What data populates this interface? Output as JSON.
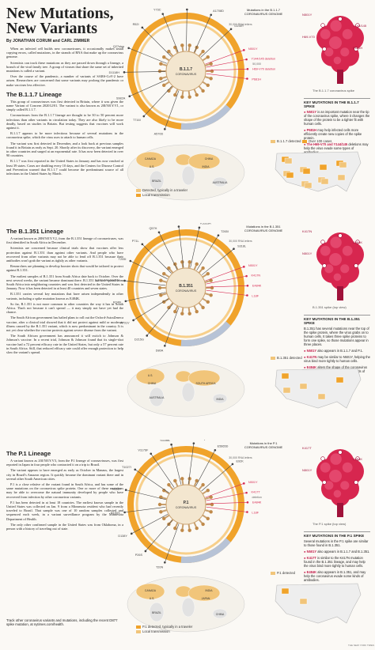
{
  "header": {
    "title_line1": "New Mutations,",
    "title_line2": "New Variants",
    "byline": "By JONATHAN CORUM and CARL ZIMMER"
  },
  "intro": [
    "When an infected cell builds new coronaviruses, it occasionally makes small copying errors, called mutations, in the strands of RNA that make up the coronavirus genome.",
    "Scientists can track these mutations as they are passed down through a lineage, a branch of the viral family tree. A group of viruses that share the same set of inherited mutations is called a variant.",
    "Over the course of the pandemic, a number of variants of SARS-CoV-2 have arisen. Researchers are concerned that some variants may prolong the pandemic or make vaccines less effective."
  ],
  "sections": [
    {
      "heading": "The B.1.1.7 Lineage",
      "paragraphs": [
        "This group of coronaviruses was first detected in Britain, where it was given the name Variant of Concern 202012/01. The variant is also known as 20I/501Y.V1, or simply called B.1.1.7.",
        "Coronaviruses from the B.1.1.7 lineage are thought to be 30 to 50 percent more infectious than other variants in circulation today. They are also likely to be more deadly, based on studies in Britain. But testing suggests that vaccines will work against it.",
        "B.1.1.7 appears to be more infectious because of several mutations in the coronavirus spike, which the virus uses to attach to human cells.",
        "The variant was first detected in December, and a look back at previous samples found it in Britain as early as Sept. 20. Shortly after its discovery, the variant emerged in other countries and surged at an exponential rate. It has now been detected in over 90 countries.",
        "B.1.1.7 was first reported in the United States in January and has now reached at least 39 states. Cases are doubling every 10 days, and the Centers for Disease Control and Prevention warned that B.1.1.7 could become the predominant source of all infections in the United States by March."
      ],
      "genome_label": "Mutations in the B.1.1.7 CORONAVIRUS GENOME",
      "center_label": "B.1.1.7 CORONAVIRUS",
      "scale_labels": [
        "ORF1ab",
        "Spike",
        "30,000 RNA letters",
        "50,000"
      ],
      "mutations": [
        "N501Y",
        "Y144/145 deletion",
        "H69-V70 deletion",
        "P681H",
        "A570D",
        "T716I",
        "S982A",
        "D1118H",
        "Q27stop",
        "R52I",
        "Y73C",
        "T1001I",
        "A1708D",
        "I2230T"
      ],
      "spike_caption": "The B.1.1.7 coronavirus spike",
      "spike_labels": [
        "N501Y",
        "Y144/145",
        "H69-V70",
        "P681H"
      ],
      "key_heading": "KEY MUTATIONS IN THE B.1.1.7 SPIKE",
      "key_items": [
        {
          "name": "N501Y",
          "text": "is an important mutation near the tip of the coronavirus spike, where it changes the shape of the protein to be a tighter fit with human cells."
        },
        {
          "name": "P681H",
          "text": "may help infected cells more efficiently create new copies of the spike protein."
        },
        {
          "name": "The H69-V70 and Y144/145",
          "text": "deletions may help the virus evade some types of antibodies."
        }
      ],
      "map_legend": [
        "B.1.1.7 detected",
        "Over 100 cases",
        "Detected, typically in a traveler",
        "Local transmission"
      ],
      "map_countries": [
        "CANADA",
        "U.S.",
        "BRAZIL",
        "AUSTRALIA",
        "INDIA",
        "CHINA"
      ]
    },
    {
      "heading": "The B.1.351 Lineage",
      "paragraphs": [
        "A variant known as 20H/501Y.V2, from the B.1.351 lineage of coronaviruses, was first identified in South Africa in December.",
        "Scientists are concerned because clinical trials show that vaccines offer less protection against B.1.351 than against other variants. And people who have recovered from other variants may not be able to fend off B.1.351 because their antibodies won't grab the variant as tightly as other variants.",
        "Researchers are planning to develop booster shots that would be tailored to protect against B.1.351.",
        "The earliest samples of B.1.351 from South Africa date back to October. Over the next several weeks, the variant became dominant there. B.1.351 has now spread from South Africa into neighboring countries and was first detected in the United States in January. Now it has been detected in at least 40 countries and seven states.",
        "B.1.351 carries several key mutations that have arisen independently in other variants, including a spike mutation known as E484K.",
        "So far, B.1.351 is not more common in other countries the way it has in South Africa. That's not because it can't spread — it may simply not have yet had the chance.",
        "The South African government has halted plans to roll out the Oxford-AstraZeneca vaccine, after a clinical trial showed that it did not protect against mild or moderate illness caused by the B.1.351 variant, which is now predominant in the country. It is not yet clear whether the vaccine protects against severe disease from the variant.",
        "The South African government has announced it will switch to Johnson & Johnson's vaccine. In a recent trial, Johnson & Johnson found that its single-shot vaccine had a 72 percent efficacy rate in the United States, but only a 57 percent rate in South Africa. Still, that reduced efficacy rate could offer enough protection to help slow the variant's spread."
      ],
      "genome_label": "Mutations in the B.1.351 CORONAVIRUS GENOME",
      "center_label": "B.1.351 CORONAVIRUS",
      "scale_labels": [
        "ORF1ab",
        "Spike",
        "30,000 RNA letters"
      ],
      "mutations": [
        "N501Y",
        "K417N",
        "E484K",
        "L18F",
        "D80A",
        "D215G",
        "A701V",
        "R246I",
        "L242-244 deletion",
        "T205I",
        "P71L",
        "Q57H",
        "K1655N",
        "K3353R",
        "T265I",
        "S318L"
      ],
      "spike_caption": "B.1.351 spike (top view)",
      "spike_labels": [
        "K417N",
        "E484K",
        "N501Y"
      ],
      "key_heading": "KEY MUTATIONS IN THE B.1.351 SPIKE",
      "key_items": [
        {
          "name": "",
          "text": "B.1.351 has several mutations near the top of the spike protein, where the virus grabs on to human cells. It takes three spike proteins to form one spike, so those mutations appear in three places."
        },
        {
          "name": "N501Y",
          "text": "also appears in B.1.1.7 and P.1."
        },
        {
          "name": "K417N",
          "text": "may be similar to N501Y, helping the virus bind more tightly to human cells."
        },
        {
          "name": "E484K",
          "text": "alters the shape of the coronavirus spike and may help it evade some kinds of antibodies."
        }
      ],
      "map_legend": [
        "B.1.351 detected"
      ],
      "map_countries": [
        "U.S.",
        "CHINA",
        "AUSTRALIA",
        "INDIA",
        "SOUTH AFRICA"
      ]
    },
    {
      "heading": "The P.1 Lineage",
      "paragraphs": [
        "A variant known as 20J/501Y.V3, from the P.1 lineage of coronaviruses, was first reported in Japan in four people who contracted it on a trip to Brazil.",
        "The variant appears to have emerged as early as October in Manaus, the largest city in Brazil's Amazon region. It quickly became the dominant variant there and in several other South American cities.",
        "P.1 is a close relative of the variant found in South Africa, and has some of the same mutations on the coronavirus spike protein. One or more of these mutations may be able to overcome the natural immunity developed by people who have recovered from infection by other coronavirus variants.",
        "P.1 has been detected in at least 18 countries. The earliest known sample in the United States was collected on Jan. 9 from a Minnesota resident who had recently traveled to Brazil. That sample was one of 10 random samples collected and sequenced each week, in a variant surveillance program by the Minnesota Department of Health.",
        "The only other confirmed sample in the United States was from Oklahoma, in a person with a history of traveling out of state."
      ],
      "genome_label": "Mutations in the P.1 CORONAVIRUS GENOME",
      "center_label": "P.1 CORONAVIRUS",
      "scale_labels": [
        "ORF1ab",
        "Spike",
        "30,000 RNA letters",
        "deletion"
      ],
      "mutations": [
        "N501Y",
        "K417T",
        "E484K",
        "L18F",
        "T20N",
        "P26S",
        "D138Y",
        "R190S",
        "H655Y",
        "T1027I",
        "V1176F",
        "S1188L",
        "K1795Q",
        "E5665D",
        "E92K"
      ],
      "spike_caption": "The P.1 spike (top view)",
      "spike_labels": [
        "K417T",
        "E484K",
        "N501Y"
      ],
      "key_heading": "KEY MUTATIONS IN THE P.1 SPIKE",
      "key_items": [
        {
          "name": "",
          "text": "Several mutations in the P.1 spike are similar to those found in B.1.351."
        },
        {
          "name": "N501Y",
          "text": "also appears in B.1.1.7 and B.1.351."
        },
        {
          "name": "K417T",
          "text": "is similar to the K417N mutation found in the B.1.351 lineage, and may help the virus bind more tightly to human cells."
        },
        {
          "name": "E484K",
          "text": "also appears in B.1.351, and may help the coronavirus evade some kinds of antibodies."
        }
      ],
      "map_legend": [
        "P.1 detected",
        "P.1 detected, typically in a traveler",
        "Local transmission"
      ],
      "map_countries": [
        "CANADA",
        "U.S.",
        "BRAZIL",
        "CHINA",
        "JAPAN",
        "INDIA"
      ]
    }
  ],
  "footer": {
    "link_text": "Track other coronavirus variants and mutations, including the recent D877 spike mutation, at nytimes.com/health.",
    "credit": "THE NEW YORK TIMES",
    "colors": {
      "orange": "#f0a32b",
      "light_orange": "#f7cf8a",
      "spike_red": "#d7264f",
      "spike_dark": "#a0123a",
      "map_fill": "#f1c57a",
      "map_land": "#e2e2e2"
    }
  }
}
